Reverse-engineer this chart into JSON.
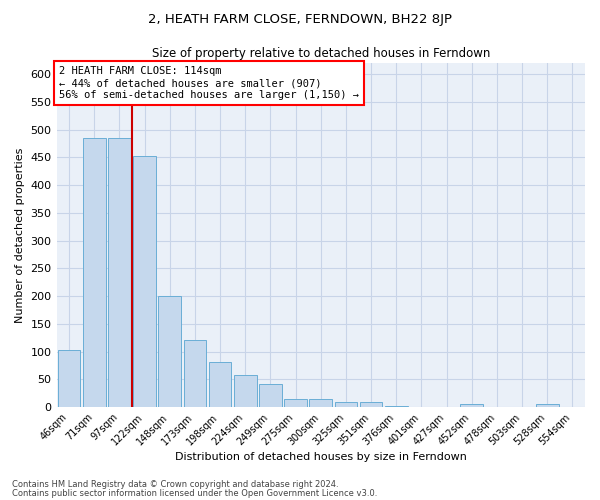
{
  "title": "2, HEATH FARM CLOSE, FERNDOWN, BH22 8JP",
  "subtitle": "Size of property relative to detached houses in Ferndown",
  "xlabel": "Distribution of detached houses by size in Ferndown",
  "ylabel": "Number of detached properties",
  "footnote1": "Contains HM Land Registry data © Crown copyright and database right 2024.",
  "footnote2": "Contains public sector information licensed under the Open Government Licence v3.0.",
  "annotation_line1": "2 HEATH FARM CLOSE: 114sqm",
  "annotation_line2": "← 44% of detached houses are smaller (907)",
  "annotation_line3": "56% of semi-detached houses are larger (1,150) →",
  "bar_color": "#c5d8ed",
  "bar_edge_color": "#6aaed6",
  "grid_color": "#c8d4e8",
  "background_color": "#eaf0f8",
  "vline_color": "#cc0000",
  "vline_position": 2.5,
  "categories": [
    "46sqm",
    "71sqm",
    "97sqm",
    "122sqm",
    "148sqm",
    "173sqm",
    "198sqm",
    "224sqm",
    "249sqm",
    "275sqm",
    "300sqm",
    "325sqm",
    "351sqm",
    "376sqm",
    "401sqm",
    "427sqm",
    "452sqm",
    "478sqm",
    "503sqm",
    "528sqm",
    "554sqm"
  ],
  "values": [
    103,
    485,
    485,
    452,
    200,
    120,
    82,
    58,
    42,
    15,
    15,
    10,
    10,
    2,
    0,
    0,
    6,
    0,
    0,
    6,
    0
  ],
  "ylim": [
    0,
    620
  ],
  "yticks": [
    0,
    50,
    100,
    150,
    200,
    250,
    300,
    350,
    400,
    450,
    500,
    550,
    600
  ],
  "bar_width": 0.9,
  "figsize": [
    6.0,
    5.0
  ],
  "dpi": 100
}
